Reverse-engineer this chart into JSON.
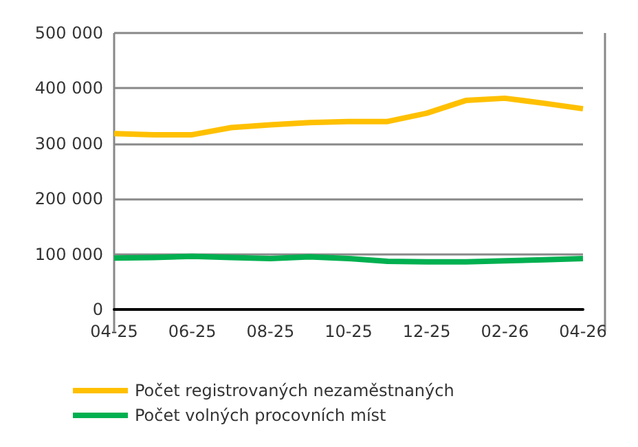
{
  "chart_data": {
    "type": "line",
    "categories": [
      "04-25",
      null,
      "06-25",
      null,
      "08-25",
      null,
      "10-25",
      null,
      "12-25",
      null,
      "02-26",
      null,
      "04-26"
    ],
    "series": [
      {
        "name": "Počet registrovaných nezaměstnaných",
        "color": "#ffc000",
        "values": [
          318000,
          316000,
          316000,
          329000,
          334000,
          338000,
          340000,
          340000,
          355000,
          378000,
          382000,
          373000,
          363000
        ]
      },
      {
        "name": "Počet volných procovních míst",
        "color": "#00b050",
        "values": [
          93000,
          94000,
          96000,
          94000,
          92000,
          95000,
          92000,
          87000,
          86000,
          86000,
          88000,
          90000,
          92000
        ]
      }
    ],
    "ylim": [
      0,
      500000
    ],
    "yticks": [
      {
        "value": 0,
        "label": "0"
      },
      {
        "value": 100000,
        "label": "100 000"
      },
      {
        "value": 200000,
        "label": "200 000"
      },
      {
        "value": 300000,
        "label": "300 000"
      },
      {
        "value": 400000,
        "label": "400 000"
      },
      {
        "value": 500000,
        "label": "500 000"
      }
    ],
    "grid": "y",
    "legend": "bottom",
    "marker": "none",
    "line_style": "solid"
  }
}
